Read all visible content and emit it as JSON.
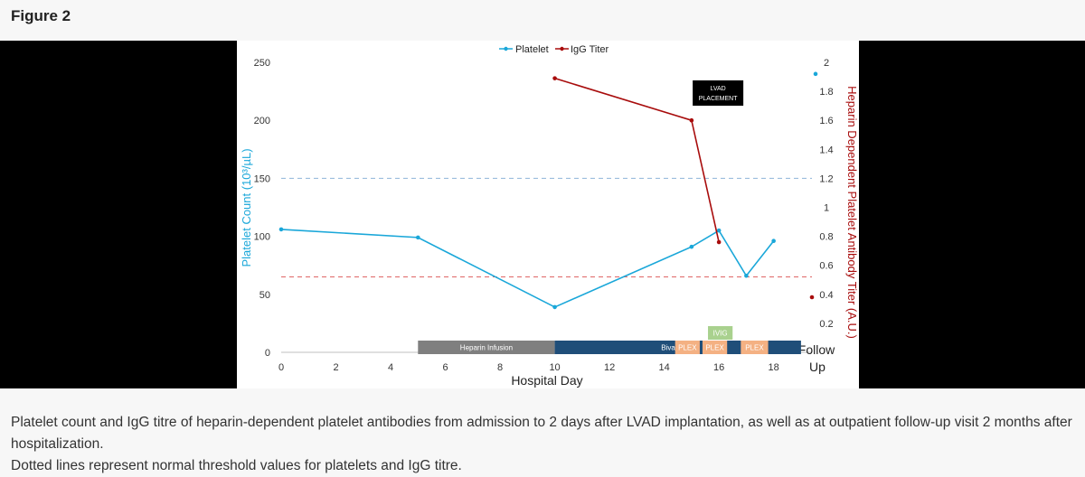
{
  "figure_title": "Figure 2",
  "caption": {
    "line1": "Platelet count and IgG titre of heparin-dependent platelet antibodies from admission to 2 days after LVAD implantation, as well as at outpatient follow-up visit 2 months after hospitalization.",
    "line2": "Dotted lines represent normal threshold values for platelets and IgG titre."
  },
  "colors": {
    "platelet": "#1aa7d9",
    "igg": "#a80c0c"
  },
  "chart_data": {
    "type": "line",
    "xlabel": "Hospital Day",
    "ylabel": "Platelet Count (10³/µL)",
    "y2label": "Heparin Dependent Platelet Antibody Titer (A.U.)",
    "xlim": [
      0,
      19.4
    ],
    "ylim": [
      0,
      250
    ],
    "y2lim": [
      0,
      2
    ],
    "x_ticks": [
      "0",
      "2",
      "4",
      "6",
      "8",
      "10",
      "12",
      "14",
      "16",
      "18"
    ],
    "x_tick_values": [
      0,
      2,
      4,
      6,
      8,
      10,
      12,
      14,
      16,
      18
    ],
    "followup_label": [
      "Follow",
      "Up"
    ],
    "followup_x": 19.4,
    "y_ticks": [
      "0",
      "50",
      "100",
      "150",
      "200",
      "250"
    ],
    "y_tick_values": [
      0,
      50,
      100,
      150,
      200,
      250
    ],
    "y2_ticks": [
      "0.2",
      "0.4",
      "0.6",
      "0.8",
      "1",
      "1.2",
      "1.4",
      "1.6",
      "1.8",
      "2"
    ],
    "y2_tick_values": [
      0.2,
      0.4,
      0.6,
      0.8,
      1.0,
      1.2,
      1.4,
      1.6,
      1.8,
      2.0
    ],
    "legend": [
      "Platelet",
      "IgG Titer"
    ],
    "series": [
      {
        "name": "Platelet",
        "axis": "left",
        "x": [
          0,
          5,
          10,
          15,
          16,
          17,
          18
        ],
        "values": [
          106,
          99,
          39,
          91,
          105,
          66,
          96
        ],
        "followup": 240
      },
      {
        "name": "IgG Titer",
        "axis": "right",
        "x": [
          10,
          15,
          16
        ],
        "values": [
          1.89,
          1.6,
          0.76
        ],
        "followup": 0.38
      }
    ],
    "thresholds": [
      {
        "axis": "left",
        "value": 150
      },
      {
        "axis": "right",
        "value": 0.52
      }
    ],
    "treatment_bars": [
      {
        "label": "Heparin Infusion",
        "start": 5,
        "end": 10,
        "color": "#7f7f7f"
      },
      {
        "label": "Bivalirudin",
        "start": 10,
        "end": 19,
        "color": "#1f4e79"
      },
      {
        "label": "PLEX",
        "start": 14.4,
        "end": 15.3,
        "color": "#f4b183"
      },
      {
        "label": "PLEX",
        "start": 15.4,
        "end": 16.3,
        "color": "#f4b183"
      },
      {
        "label": "PLEX",
        "start": 16.8,
        "end": 17.8,
        "color": "#f4b183"
      }
    ],
    "ivig": {
      "label": "IVIG",
      "start": 15.6,
      "end": 16.5,
      "color": "#a9d18e"
    },
    "annotation": {
      "lines": [
        "LVAD",
        "PLACEMENT"
      ],
      "x": 16
    }
  }
}
